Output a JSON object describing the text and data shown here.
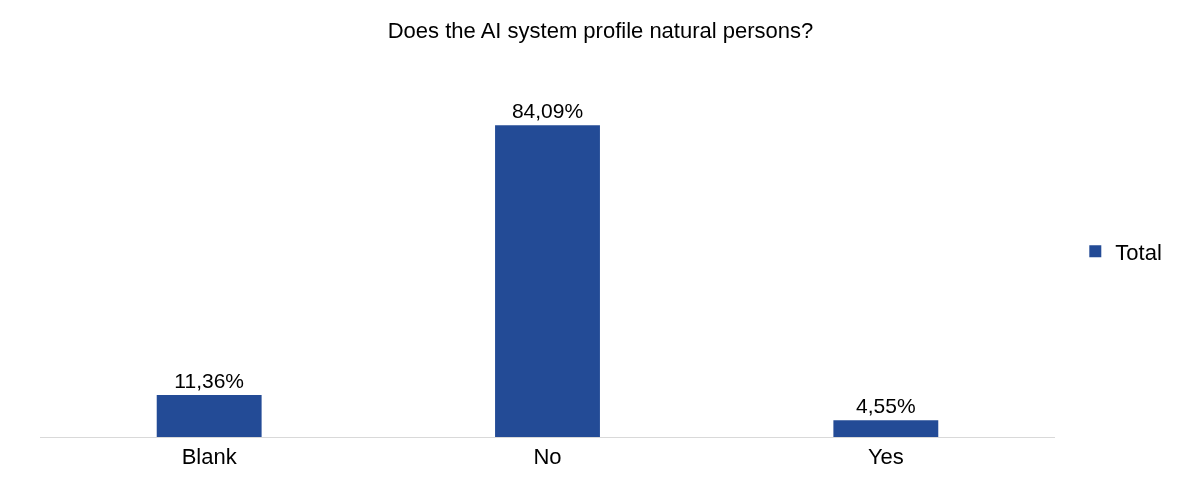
{
  "chart_data": {
    "type": "bar",
    "title": "Does the AI system profile natural persons?",
    "categories": [
      "Blank",
      "No",
      "Yes"
    ],
    "series": [
      {
        "name": "Total",
        "color": "#234b96",
        "values": [
          11.36,
          84.09,
          4.55
        ],
        "value_labels": [
          "11,36%",
          "84,09%",
          "4,55%"
        ]
      }
    ],
    "legend": "right"
  }
}
